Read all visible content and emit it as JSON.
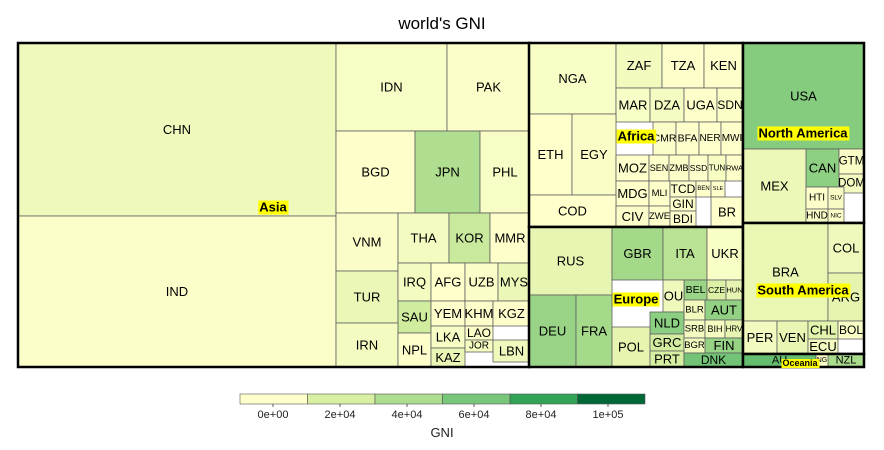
{
  "chart_data": {
    "type": "treemap",
    "title": "world's GNI",
    "legend": {
      "title": "GNI",
      "ticks": [
        "0e+00",
        "2e+04",
        "4e+04",
        "6e+04",
        "8e+04",
        "1e+05"
      ],
      "tick_values": [
        0,
        20000,
        40000,
        60000,
        80000,
        100000
      ],
      "colors": [
        "#ffffcc",
        "#d9f0a3",
        "#addd8e",
        "#78c679",
        "#31a354",
        "#006837"
      ]
    },
    "groups": [
      {
        "name": "Asia",
        "items": [
          {
            "label": "CHN",
            "value": 7820
          },
          {
            "label": "IND",
            "value": 1570
          },
          {
            "label": "IDN",
            "value": 3440
          },
          {
            "label": "PAK",
            "value": 1410
          },
          {
            "label": "BGD",
            "value": 1080
          },
          {
            "label": "JPN",
            "value": 38550
          },
          {
            "label": "PHL",
            "value": 3550
          },
          {
            "label": "VNM",
            "value": 2060
          },
          {
            "label": "THA",
            "value": 5720
          },
          {
            "label": "KOR",
            "value": 27090
          },
          {
            "label": "MMR",
            "value": 1190
          },
          {
            "label": "TUR",
            "value": 10830
          },
          {
            "label": "IRQ",
            "value": 5550
          },
          {
            "label": "AFG",
            "value": 610
          },
          {
            "label": "UZB",
            "value": 2090
          },
          {
            "label": "MYS",
            "value": 10430
          },
          {
            "label": "SAU",
            "value": 24160
          },
          {
            "label": "YEM",
            "value": 1250
          },
          {
            "label": "KHM",
            "value": 1010
          },
          {
            "label": "IRN",
            "value": 5820
          },
          {
            "label": "NPL",
            "value": 730
          },
          {
            "label": "LKA",
            "value": 3610
          },
          {
            "label": "KAZ",
            "value": 11390
          },
          {
            "label": "KGZ",
            "value": 1170
          },
          {
            "label": "LAO",
            "value": 1740
          },
          {
            "label": "JOR",
            "value": 4920
          },
          {
            "label": "LBN",
            "value": 8270
          }
        ]
      },
      {
        "name": "Africa",
        "items": [
          {
            "label": "NGA",
            "value": 2970
          },
          {
            "label": "ZAF",
            "value": 6800
          },
          {
            "label": "TZA",
            "value": 920
          },
          {
            "label": "KEN",
            "value": 1290
          },
          {
            "label": "MAR",
            "value": 3070
          },
          {
            "label": "DZA",
            "value": 5490
          },
          {
            "label": "UGA",
            "value": 670
          },
          {
            "label": "SDN",
            "value": 1710
          },
          {
            "label": "ETH",
            "value": 590
          },
          {
            "label": "EGY",
            "value": 3280
          },
          {
            "label": "CMR",
            "value": 1360
          },
          {
            "label": "BFA",
            "value": 700
          },
          {
            "label": "NER",
            "value": 410
          },
          {
            "label": "MWI",
            "value": 250
          },
          {
            "label": "MOZ",
            "value": 620
          },
          {
            "label": "SEN",
            "value": 1070
          },
          {
            "label": "ZMB",
            "value": 1810
          },
          {
            "label": "SSD",
            "value": 820
          },
          {
            "label": "TUN",
            "value": 4230
          },
          {
            "label": "RWA",
            "value": 700
          },
          {
            "label": "MDG",
            "value": 440
          },
          {
            "label": "MLI",
            "value": 700
          },
          {
            "label": "TCD",
            "value": 990
          },
          {
            "label": "BEN",
            "value": 810
          },
          {
            "label": "SLE",
            "value": 680
          },
          {
            "label": "COD",
            "value": 410
          },
          {
            "label": "GIN",
            "value": 490
          },
          {
            "label": "CIV",
            "value": 1460
          },
          {
            "label": "ZWE",
            "value": 840
          },
          {
            "label": "BDI",
            "value": 270
          },
          {
            "label": "BR",
            "value": 150
          }
        ]
      },
      {
        "name": "North America",
        "items": [
          {
            "label": "USA",
            "value": 55200
          },
          {
            "label": "CAN",
            "value": 51630
          },
          {
            "label": "MEX",
            "value": 9870
          },
          {
            "label": "GTM",
            "value": 3410
          },
          {
            "label": "DOM",
            "value": 6020
          },
          {
            "label": "HTI",
            "value": 820
          },
          {
            "label": "SLV",
            "value": 3780
          },
          {
            "label": "HND",
            "value": 2190
          },
          {
            "label": "NIC",
            "value": 1870
          }
        ]
      },
      {
        "name": "Europe",
        "items": [
          {
            "label": "RUS",
            "value": 13220
          },
          {
            "label": "GBR",
            "value": 43390
          },
          {
            "label": "ITA",
            "value": 34270
          },
          {
            "label": "UKR",
            "value": 3130
          },
          {
            "label": "DEU",
            "value": 47640
          },
          {
            "label": "FRA",
            "value": 42960
          },
          {
            "label": "BEL",
            "value": 47030
          },
          {
            "label": "CZE",
            "value": 18350
          },
          {
            "label": "HUN",
            "value": 13340
          },
          {
            "label": "OU",
            "value": 8000
          },
          {
            "label": "BLR",
            "value": 7340
          },
          {
            "label": "AUT",
            "value": 50370
          },
          {
            "label": "NLD",
            "value": 51890
          },
          {
            "label": "SRB",
            "value": 5820
          },
          {
            "label": "BIH",
            "value": 4760
          },
          {
            "label": "HRV",
            "value": 13080
          },
          {
            "label": "POL",
            "value": 13690
          },
          {
            "label": "GRC",
            "value": 22680
          },
          {
            "label": "BGR",
            "value": 7620
          },
          {
            "label": "FIN",
            "value": 48420
          },
          {
            "label": "PRT",
            "value": 21350
          },
          {
            "label": "DNK",
            "value": 61310
          }
        ]
      },
      {
        "name": "South America",
        "items": [
          {
            "label": "BRA",
            "value": 11530
          },
          {
            "label": "COL",
            "value": 7970
          },
          {
            "label": "ARG",
            "value": 13480
          },
          {
            "label": "PER",
            "value": 6410
          },
          {
            "label": "VEN",
            "value": 12500
          },
          {
            "label": "CHL",
            "value": 14900
          },
          {
            "label": "BOL",
            "value": 2830
          },
          {
            "label": "ECU",
            "value": 6090
          }
        ]
      },
      {
        "name": "Oceania",
        "items": [
          {
            "label": "AU",
            "value": 65390
          },
          {
            "label": "NZL",
            "value": 41070
          },
          {
            "label": "NG",
            "value": 2240
          }
        ]
      }
    ]
  }
}
